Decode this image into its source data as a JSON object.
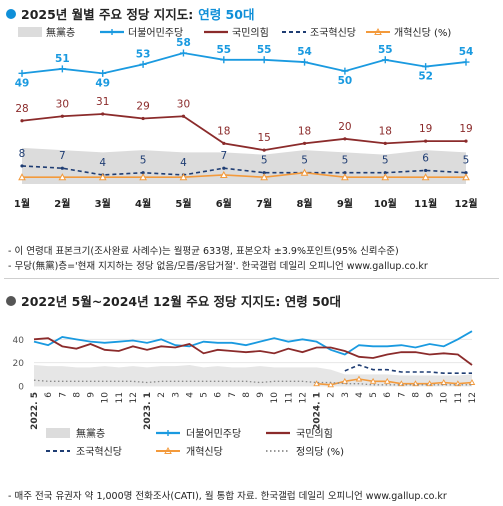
{
  "colors": {
    "minjoo": "#1a9ae0",
    "ppp": "#8b2b2b",
    "rebuilding": "#1f3d73",
    "reform": "#f39a3c",
    "justice": "#8a8a8a",
    "none_area": "#dcdcdc",
    "accent": "#0f8fd8"
  },
  "section1": {
    "title_prefix": "2025년 월별 주요 정당 지지도:",
    "title_accent": "연령 50대",
    "notes": [
      "- 이 연령대 표본크기(조사완료 사례수)는 월평균 633명, 표본오차 ±3.9%포인트(95% 신뢰수준)",
      "- 무당(無黨)층='현재 지지하는 정당 없음/모름/응답거절'. 한국갤럽 데일리 오피니언 www.gallup.co.kr"
    ]
  },
  "section2": {
    "title": "2022년 5월~2024년 12월 주요 정당 지지도: 연령 50대",
    "note": "- 매주 전국 유권자 약 1,000명 전화조사(CATI), 월 통합 자료. 한국갤럽 데일리 오피니언 www.gallup.co.kr"
  },
  "chart_data": [
    {
      "type": "line",
      "categories": [
        "1월",
        "2월",
        "3월",
        "4월",
        "5월",
        "6월",
        "7월",
        "8월",
        "9월",
        "10월",
        "11월",
        "12월"
      ],
      "legend": [
        "無黨층",
        "더불어민주당",
        "국민의힘",
        "조국혁신당",
        "개혁신당 (%)"
      ],
      "series": [
        {
          "name": "無黨층",
          "style": "area",
          "values": [
            16,
            15,
            14,
            15,
            14,
            14,
            13,
            15,
            14,
            13,
            15,
            14
          ]
        },
        {
          "name": "더불어민주당",
          "values": [
            49,
            51,
            49,
            53,
            58,
            55,
            55,
            54,
            50,
            55,
            52,
            54
          ]
        },
        {
          "name": "국민의힘",
          "values": [
            28,
            30,
            31,
            29,
            30,
            18,
            15,
            18,
            20,
            18,
            19,
            19
          ]
        },
        {
          "name": "조국혁신당",
          "values": [
            8,
            7,
            4,
            5,
            4,
            7,
            5,
            5,
            5,
            5,
            6,
            5
          ]
        },
        {
          "name": "개혁신당 (%)",
          "values": [
            3,
            3,
            3,
            3,
            3,
            4,
            3,
            5,
            3,
            3,
            3,
            3
          ]
        }
      ],
      "ylim": [
        0,
        62
      ]
    },
    {
      "type": "line",
      "x_ticks": [
        "2022. 5",
        "6",
        "7",
        "8",
        "9",
        "10",
        "11",
        "12",
        "2023. 1",
        "2",
        "3",
        "4",
        "5",
        "6",
        "7",
        "8",
        "9",
        "10",
        "11",
        "12",
        "2024. 1",
        "2",
        "3",
        "4",
        "5",
        "6",
        "7",
        "8",
        "9",
        "10",
        "11",
        "12"
      ],
      "y_ticks": [
        0,
        20,
        40
      ],
      "legend": [
        "無黨층",
        "더불어민주당",
        "국민의힘",
        "조국혁신당",
        "개혁신당",
        "정의당 (%)"
      ],
      "series": [
        {
          "name": "無黨층",
          "style": "area",
          "values": [
            18,
            17,
            17,
            16,
            16,
            17,
            16,
            17,
            16,
            17,
            17,
            18,
            16,
            17,
            16,
            16,
            17,
            16,
            16,
            16,
            16,
            14,
            10,
            10,
            10,
            10,
            9,
            9,
            9,
            9,
            9,
            10
          ]
        },
        {
          "name": "더불어민주당",
          "values": [
            38,
            35,
            42,
            40,
            38,
            37,
            38,
            39,
            37,
            40,
            35,
            34,
            38,
            37,
            37,
            35,
            38,
            41,
            38,
            40,
            38,
            31,
            27,
            35,
            34,
            34,
            35,
            33,
            36,
            34,
            40,
            47
          ]
        },
        {
          "name": "국민의힘",
          "values": [
            40,
            41,
            34,
            32,
            36,
            31,
            30,
            34,
            31,
            34,
            33,
            36,
            28,
            31,
            30,
            29,
            30,
            28,
            32,
            29,
            33,
            33,
            30,
            25,
            24,
            27,
            29,
            29,
            27,
            28,
            27,
            18
          ]
        },
        {
          "name": "조국혁신당",
          "values": [
            null,
            null,
            null,
            null,
            null,
            null,
            null,
            null,
            null,
            null,
            null,
            null,
            null,
            null,
            null,
            null,
            null,
            null,
            null,
            null,
            null,
            null,
            13,
            18,
            14,
            14,
            12,
            12,
            12,
            11,
            11,
            11
          ]
        },
        {
          "name": "개혁신당",
          "values": [
            null,
            null,
            null,
            null,
            null,
            null,
            null,
            null,
            null,
            null,
            null,
            null,
            null,
            null,
            null,
            null,
            null,
            null,
            null,
            null,
            2,
            1,
            4,
            6,
            4,
            4,
            2,
            2,
            2,
            3,
            2,
            3
          ]
        },
        {
          "name": "정의당 (%)",
          "values": [
            5,
            4,
            4,
            4,
            4,
            4,
            4,
            4,
            3,
            4,
            4,
            4,
            4,
            4,
            4,
            4,
            3,
            4,
            4,
            4,
            3,
            3,
            2,
            2,
            1,
            1,
            1,
            1,
            1,
            1,
            1,
            1
          ]
        }
      ],
      "ylim": [
        0,
        48
      ]
    }
  ]
}
